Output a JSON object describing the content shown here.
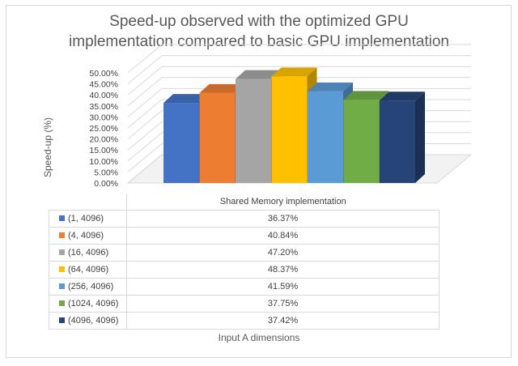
{
  "chart_data": {
    "type": "bar",
    "title_line1": "Speed-up observed with the optimized GPU",
    "title_line2": "implementation compared to basic GPU implementation",
    "xlabel": "Input A dimensions",
    "ylabel": "Speed-up (%)",
    "category": "Shared Memory implementation",
    "ylim": [
      0,
      50
    ],
    "yticks": [
      "0.00%",
      "5.00%",
      "10.00%",
      "15.00%",
      "20.00%",
      "25.00%",
      "30.00%",
      "35.00%",
      "40.00%",
      "45.00%",
      "50.00%"
    ],
    "grid": true,
    "legend": "data-table",
    "series": [
      {
        "name": "(1, 4096)",
        "value": 36.37,
        "label": "36.37%",
        "color": "#4472c4"
      },
      {
        "name": "(4, 4096)",
        "value": 40.84,
        "label": "40.84%",
        "color": "#ed7d31"
      },
      {
        "name": "(16, 4096)",
        "value": 47.2,
        "label": "47.20%",
        "color": "#a5a5a5"
      },
      {
        "name": "(64, 4096)",
        "value": 48.37,
        "label": "48.37%",
        "color": "#ffc000"
      },
      {
        "name": "(256, 4096)",
        "value": 41.59,
        "label": "41.59%",
        "color": "#5b9bd5"
      },
      {
        "name": "(1024, 4096)",
        "value": 37.75,
        "label": "37.75%",
        "color": "#70ad47"
      },
      {
        "name": "(4096, 4096)",
        "value": 37.42,
        "label": "37.42%",
        "color": "#264478"
      }
    ]
  }
}
